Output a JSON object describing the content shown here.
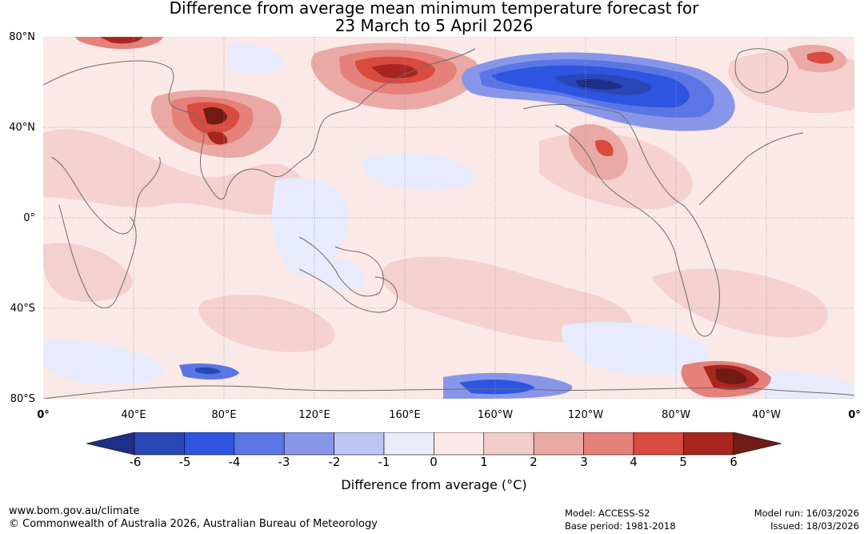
{
  "title": {
    "line1": "Difference from average mean minimum temperature forecast for",
    "line2": "23 March to 5 April 2026"
  },
  "map": {
    "lat_labels": [
      "80°N",
      "40°N",
      "0°",
      "40°S",
      "80°S"
    ],
    "lon_labels": [
      "0°",
      "40°E",
      "80°E",
      "120°E",
      "160°E",
      "160°W",
      "120°W",
      "80°W",
      "40°W",
      "0°"
    ],
    "features": [
      "cold-anomaly-north-america",
      "cold-anomaly-antarctic-coast",
      "warm-anomaly-siberia",
      "warm-anomaly-central-asia",
      "warm-anomaly-weddell-sea"
    ]
  },
  "legend": {
    "ticks": [
      "-6",
      "-5",
      "-4",
      "-3",
      "-2",
      "-1",
      "0",
      "1",
      "2",
      "3",
      "4",
      "5",
      "6"
    ],
    "colors": [
      "#1f2e86",
      "#2a47b7",
      "#2e55e1",
      "#5a76e4",
      "#8896ea",
      "#bcc4f2",
      "#e8ebfb",
      "#fbe9e8",
      "#f3cdca",
      "#eaa9a4",
      "#e5807a",
      "#d94a3f",
      "#a8261f",
      "#701b16"
    ],
    "label": "Difference from average (°C)"
  },
  "footer": {
    "website": "www.bom.gov.au/climate",
    "copyright": "© Commonwealth of Australia 2026, Australian Bureau of Meteorology",
    "model": "Model: ACCESS-S2",
    "base_period": "Base period: 1981-2018",
    "model_run": "Model run: 16/03/2026",
    "issued": "Issued: 18/03/2026"
  }
}
